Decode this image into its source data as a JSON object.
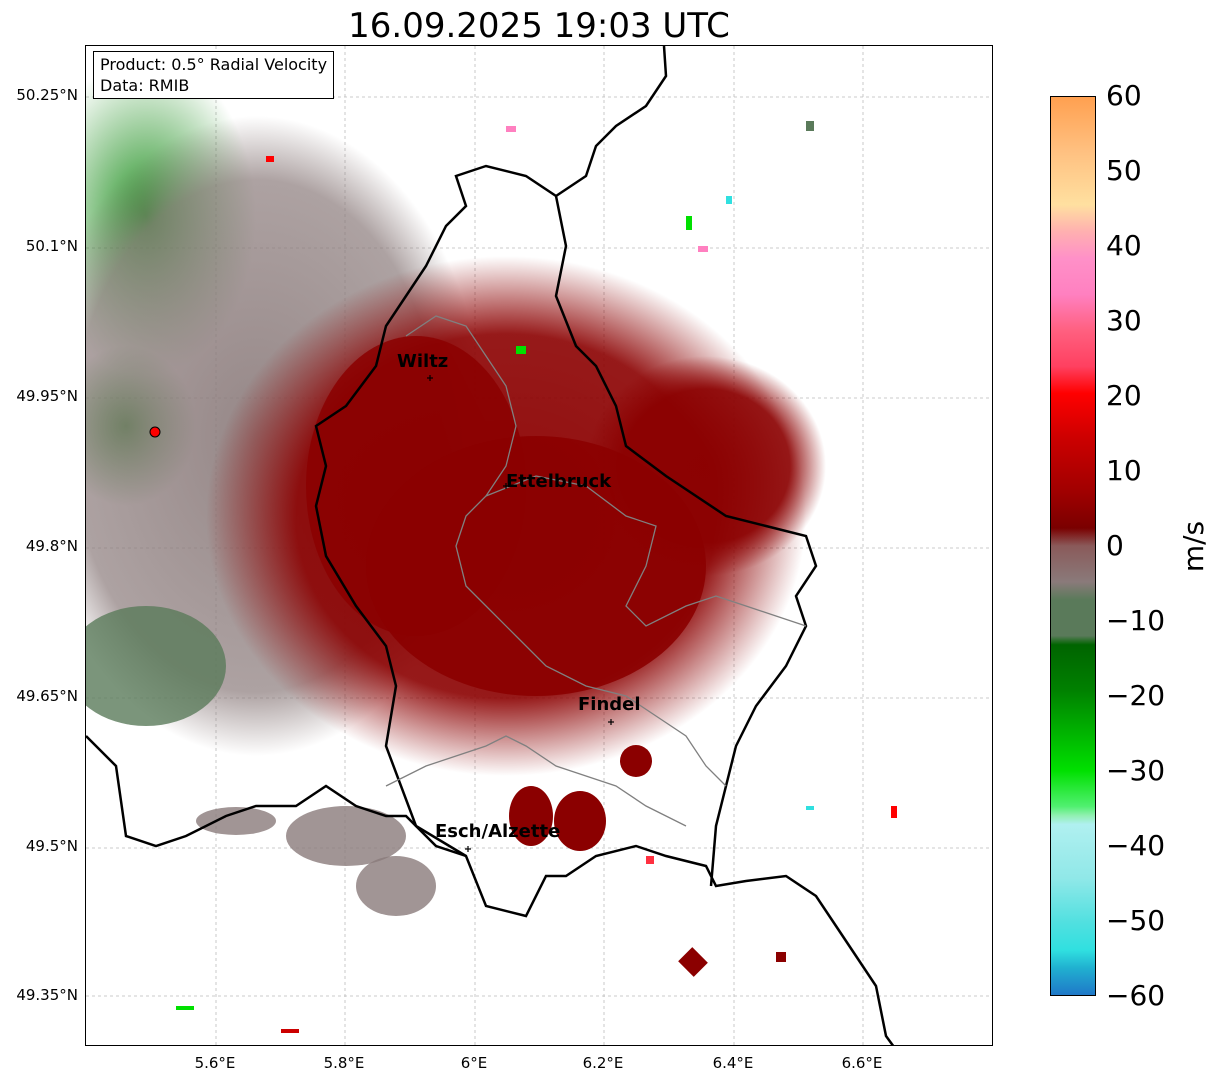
{
  "title": "16.09.2025 19:03 UTC",
  "info": {
    "product": "Product: 0.5° Radial Velocity",
    "data": "Data: RMIB"
  },
  "axes": {
    "y_labels": [
      "50.25°N",
      "50.1°N",
      "49.95°N",
      "49.8°N",
      "49.65°N",
      "49.5°N",
      "49.35°N"
    ],
    "x_labels": [
      "5.6°E",
      "5.8°E",
      "6°E",
      "6.2°E",
      "6.4°E",
      "6.6°E"
    ]
  },
  "cities": {
    "wiltz": "Wiltz",
    "ettelbruck": "Ettelbruck",
    "findel": "Findel",
    "esch": "Esch/Alzette"
  },
  "colorbar": {
    "labels": [
      "60",
      "50",
      "40",
      "30",
      "20",
      "10",
      "0",
      "−10",
      "−20",
      "−30",
      "−40",
      "−50",
      "−60"
    ],
    "unit": "m/s",
    "colors": {
      "neg_blue": "#1f78c8",
      "neg_cyan": "#30e0e0",
      "neg_lightcyan": "#b0f0f0",
      "neg_lightgreen": "#80f0a0",
      "neg_green": "#00e000",
      "neg_darkgreen": "#006400",
      "zero_gray": "#8a7a7a",
      "zero_green": "#5a7a5a",
      "pos_darkred": "#8b0000",
      "pos_red": "#ff0000",
      "pos_pink": "#ff80c0",
      "pos_peach": "#ffe0a0",
      "pos_orange": "#ffa050"
    }
  }
}
